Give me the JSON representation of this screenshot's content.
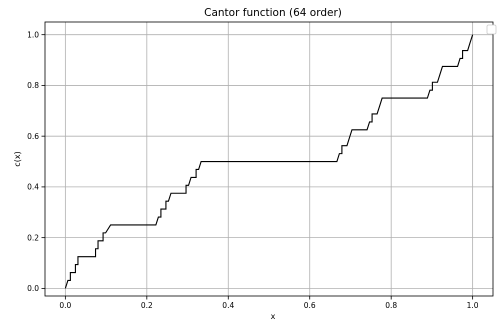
{
  "chart_data": {
    "type": "line",
    "title": "Cantor function (64 order)",
    "xlabel": "x",
    "ylabel": "c(x)",
    "xlim": [
      -0.05,
      1.05
    ],
    "ylim": [
      -0.03,
      1.05
    ],
    "xticks": [
      "0.0",
      "0.2",
      "0.4",
      "0.6",
      "0.8",
      "1.0"
    ],
    "yticks": [
      "0.0",
      "0.2",
      "0.4",
      "0.6",
      "0.8",
      "1.0"
    ],
    "grid": true,
    "legend": "top-right (empty)",
    "series": [
      {
        "color": "#000000",
        "points": [
          [
            0.0,
            0.0
          ],
          [
            0.0062,
            0.0312
          ],
          [
            0.0123,
            0.0312
          ],
          [
            0.0123,
            0.0625
          ],
          [
            0.0247,
            0.0625
          ],
          [
            0.0247,
            0.0938
          ],
          [
            0.0309,
            0.0938
          ],
          [
            0.0309,
            0.125
          ],
          [
            0.0741,
            0.125
          ],
          [
            0.0741,
            0.1562
          ],
          [
            0.0802,
            0.1562
          ],
          [
            0.0802,
            0.1875
          ],
          [
            0.0926,
            0.1875
          ],
          [
            0.0926,
            0.2188
          ],
          [
            0.0988,
            0.2188
          ],
          [
            0.1111,
            0.25
          ],
          [
            0.2222,
            0.25
          ],
          [
            0.2284,
            0.2812
          ],
          [
            0.2346,
            0.2812
          ],
          [
            0.2346,
            0.3125
          ],
          [
            0.2469,
            0.3125
          ],
          [
            0.2469,
            0.3438
          ],
          [
            0.2531,
            0.3438
          ],
          [
            0.2593,
            0.375
          ],
          [
            0.2963,
            0.375
          ],
          [
            0.2963,
            0.4062
          ],
          [
            0.3025,
            0.4062
          ],
          [
            0.3086,
            0.4375
          ],
          [
            0.321,
            0.4375
          ],
          [
            0.321,
            0.4688
          ],
          [
            0.3272,
            0.4688
          ],
          [
            0.3333,
            0.5
          ],
          [
            0.6667,
            0.5
          ],
          [
            0.6728,
            0.5312
          ],
          [
            0.679,
            0.5312
          ],
          [
            0.679,
            0.5625
          ],
          [
            0.6914,
            0.5625
          ],
          [
            0.6975,
            0.5938
          ],
          [
            0.6975,
            0.5938
          ],
          [
            0.7037,
            0.625
          ],
          [
            0.7407,
            0.625
          ],
          [
            0.7469,
            0.6562
          ],
          [
            0.7531,
            0.6562
          ],
          [
            0.7531,
            0.6875
          ],
          [
            0.7654,
            0.6875
          ],
          [
            0.7716,
            0.7188
          ],
          [
            0.7716,
            0.7188
          ],
          [
            0.7778,
            0.75
          ],
          [
            0.8889,
            0.75
          ],
          [
            0.8951,
            0.7812
          ],
          [
            0.9012,
            0.7812
          ],
          [
            0.9012,
            0.8125
          ],
          [
            0.9136,
            0.8125
          ],
          [
            0.9198,
            0.8438
          ],
          [
            0.9198,
            0.8438
          ],
          [
            0.9259,
            0.875
          ],
          [
            0.963,
            0.875
          ],
          [
            0.9691,
            0.9062
          ],
          [
            0.9753,
            0.9062
          ],
          [
            0.9753,
            0.9375
          ],
          [
            0.9877,
            0.9375
          ],
          [
            0.9938,
            0.9688
          ],
          [
            0.9938,
            0.9688
          ],
          [
            1.0,
            1.0
          ]
        ]
      }
    ]
  }
}
